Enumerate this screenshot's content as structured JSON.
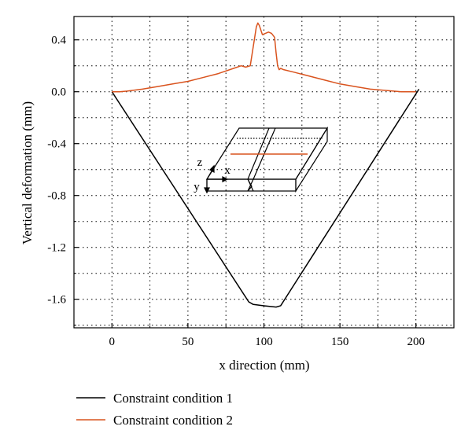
{
  "chart_data": {
    "type": "line",
    "xlabel": "x direction (mm)",
    "ylabel": "Vertical deformation (mm)",
    "xlim": [
      -25,
      225
    ],
    "ylim": [
      -1.82,
      0.58
    ],
    "xticks": [
      0,
      50,
      100,
      150,
      200
    ],
    "xtick_labels": [
      "0",
      "50",
      "100",
      "150",
      "200"
    ],
    "yticks": [
      0.4,
      0.0,
      -0.4,
      -0.8,
      -1.2,
      -1.6
    ],
    "ytick_labels": [
      "0.4",
      "0.0",
      "-0.4",
      "-0.8",
      "-1.2",
      "-1.6"
    ],
    "grid": true,
    "legend_position": "bottom-left, below plot",
    "colors": {
      "series1": "#000000",
      "series2": "#d9531e"
    },
    "series": [
      {
        "name": "Constraint condition 1",
        "color": "#000000",
        "x": [
          0,
          90,
          93,
          100,
          108,
          111,
          202
        ],
        "y": [
          0.0,
          -1.62,
          -1.64,
          -1.65,
          -1.66,
          -1.65,
          0.02
        ]
      },
      {
        "name": "Constraint condition 2",
        "color": "#d9531e",
        "x": [
          0,
          5,
          10,
          20,
          30,
          40,
          50,
          60,
          70,
          80,
          85,
          88,
          91,
          93,
          95,
          96,
          97,
          99,
          101,
          103,
          105,
          107,
          108,
          109,
          110,
          111,
          113,
          120,
          130,
          140,
          150,
          160,
          170,
          180,
          190,
          195,
          200
        ],
        "y": [
          0.0,
          0.0,
          0.005,
          0.02,
          0.04,
          0.06,
          0.08,
          0.11,
          0.14,
          0.18,
          0.2,
          0.19,
          0.2,
          0.35,
          0.5,
          0.53,
          0.51,
          0.44,
          0.45,
          0.46,
          0.45,
          0.42,
          0.3,
          0.2,
          0.17,
          0.18,
          0.17,
          0.15,
          0.12,
          0.09,
          0.06,
          0.04,
          0.02,
          0.01,
          0.0,
          0.0,
          0.0
        ]
      }
    ],
    "inset_labels": {
      "z": "z",
      "x": "x",
      "y": "y"
    }
  }
}
